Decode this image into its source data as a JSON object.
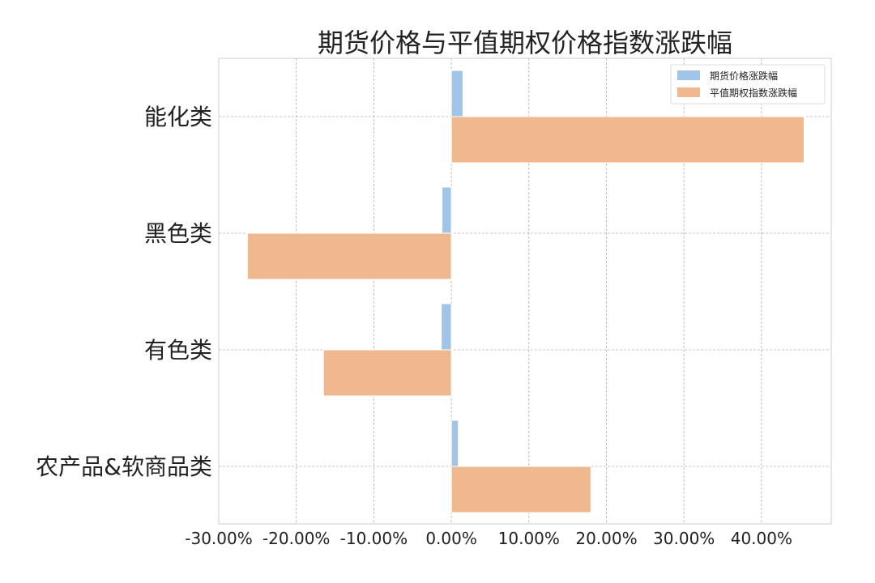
{
  "chart_data": {
    "type": "bar",
    "orientation": "horizontal",
    "title": "期货价格与平值期权价格指数涨跌幅",
    "xlabel": "",
    "ylabel": "",
    "categories": [
      "能化类",
      "黑色类",
      "有色类",
      "农产品&软商品类"
    ],
    "series": [
      {
        "name": "期货价格涨跌幅",
        "values": [
          1.5,
          -1.2,
          -1.3,
          0.9
        ],
        "color": "#a1c4e9"
      },
      {
        "name": "平值期权指数涨跌幅",
        "values": [
          45.5,
          -26.3,
          -16.5,
          18.0
        ],
        "color": "#f0b88f"
      }
    ],
    "xlim": [
      -30,
      49
    ],
    "x_ticks": [
      -30,
      -20,
      -10,
      0,
      10,
      20,
      30,
      40
    ],
    "x_tick_labels": [
      "-30.00%",
      "-20.00%",
      "-10.00%",
      "0.00%",
      "10.00%",
      "20.00%",
      "30.00%",
      "40.00%"
    ],
    "grid": true,
    "legend_position": "top-right"
  }
}
